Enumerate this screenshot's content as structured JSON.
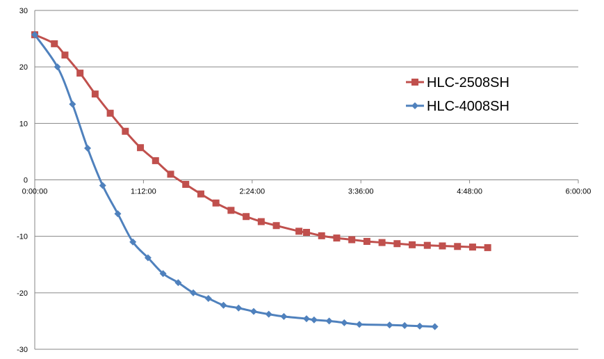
{
  "chart_data": {
    "type": "line",
    "title": "",
    "xlabel": "",
    "ylabel": "",
    "x_unit": "minutes",
    "xlim": [
      0,
      360
    ],
    "ylim": [
      -30,
      30
    ],
    "grid": true,
    "legend_position": "right",
    "x_ticks": [
      {
        "value": 0,
        "label": "0:00:00"
      },
      {
        "value": 72,
        "label": "1:12:00"
      },
      {
        "value": 144,
        "label": "2:24:00"
      },
      {
        "value": 216,
        "label": "3:36:00"
      },
      {
        "value": 288,
        "label": "4:48:00"
      },
      {
        "value": 360,
        "label": "6:00:00"
      }
    ],
    "y_ticks": [
      {
        "value": 30,
        "label": "30"
      },
      {
        "value": 20,
        "label": "20"
      },
      {
        "value": 10,
        "label": "10"
      },
      {
        "value": 0,
        "label": "0"
      },
      {
        "value": -10,
        "label": "-10"
      },
      {
        "value": -20,
        "label": "-20"
      },
      {
        "value": -30,
        "label": "-30"
      }
    ],
    "series": [
      {
        "name": "HLC-2508SH",
        "color": "#c0504d",
        "marker": "square",
        "x": [
          0,
          13,
          20,
          30,
          40,
          50,
          60,
          70,
          80,
          90,
          100,
          110,
          120,
          130,
          140,
          150,
          160,
          175,
          180,
          190,
          200,
          210,
          220,
          230,
          240,
          250,
          260,
          270,
          280,
          290,
          300
        ],
        "y": [
          25.7,
          24.1,
          22.1,
          18.9,
          15.2,
          11.8,
          8.6,
          5.7,
          3.4,
          1.0,
          -0.8,
          -2.5,
          -4.1,
          -5.4,
          -6.5,
          -7.4,
          -8.1,
          -9.1,
          -9.3,
          -9.9,
          -10.3,
          -10.6,
          -10.9,
          -11.1,
          -11.3,
          -11.5,
          -11.6,
          -11.7,
          -11.8,
          -11.9,
          -12.0
        ]
      },
      {
        "name": "HLC-4008SH",
        "color": "#4f81bd",
        "marker": "diamond",
        "x": [
          0,
          15,
          25,
          35,
          45,
          55,
          65,
          75,
          85,
          95,
          105,
          115,
          125,
          135,
          145,
          155,
          165,
          180,
          185,
          195,
          205,
          215,
          235,
          245,
          255,
          265
        ],
        "y": [
          25.7,
          20.0,
          13.4,
          5.6,
          -1.0,
          -6.0,
          -11.0,
          -13.8,
          -16.6,
          -18.2,
          -20.0,
          -21.0,
          -22.2,
          -22.7,
          -23.3,
          -23.8,
          -24.2,
          -24.6,
          -24.8,
          -25.0,
          -25.3,
          -25.6,
          -25.7,
          -25.8,
          -25.9,
          -26.0
        ]
      }
    ]
  }
}
